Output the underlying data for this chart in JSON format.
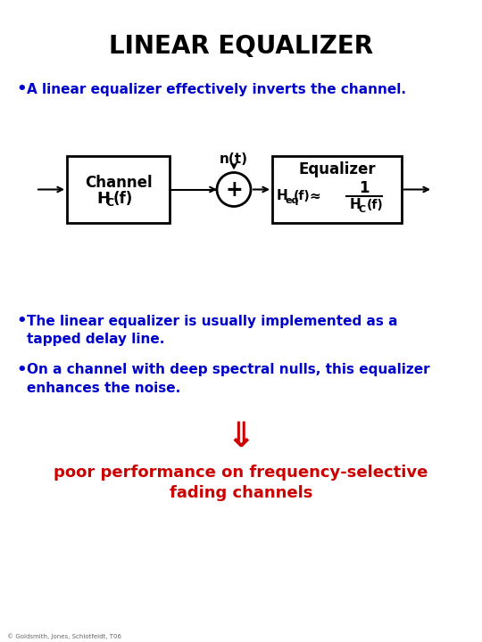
{
  "title": "LINEAR EQUALIZER",
  "title_fontsize": 20,
  "title_color": "#000000",
  "bg_color": "#ffffff",
  "bullet1": "A linear equalizer effectively inverts the channel.",
  "bullet2_line1": "The linear equalizer is usually implemented as a",
  "bullet2_line2": "tapped delay line.",
  "bullet3_line1": "On a channel with deep spectral nulls, this equalizer",
  "bullet3_line2": "enhances the noise.",
  "conclusion_line1": "poor performance on frequency-selective",
  "conclusion_line2": "fading channels",
  "bullet_color": "#0000cc",
  "conclusion_color": "#cc0000",
  "diagram_box_color": "#000000",
  "noise_label": "n(t)",
  "sumjunction_label": "+"
}
